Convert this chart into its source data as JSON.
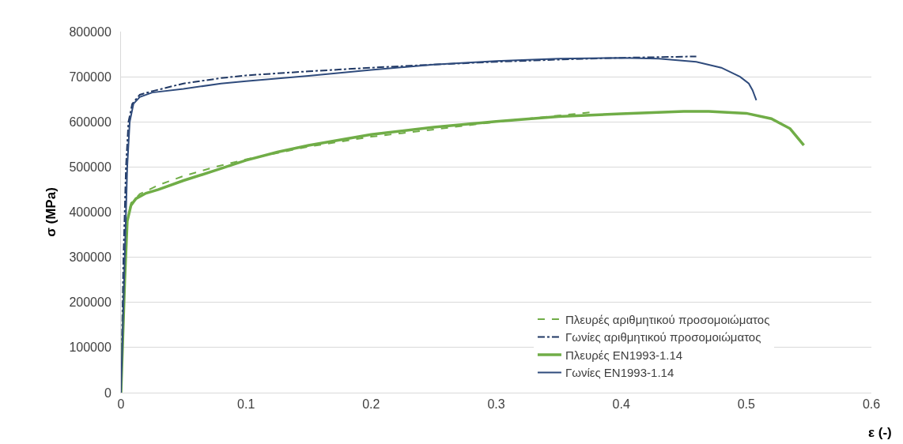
{
  "chart_data": {
    "type": "line",
    "xlabel": "ε (-)",
    "ylabel": "σ (MPa)",
    "xlim": [
      0,
      0.6
    ],
    "xticks": [
      0,
      0.1,
      0.2,
      0.3,
      0.4,
      0.5,
      0.6
    ],
    "ylim": [
      0,
      800000
    ],
    "yticks": [
      0,
      100000,
      200000,
      300000,
      400000,
      500000,
      600000,
      700000,
      800000
    ],
    "grid": "y",
    "legend": "bottom right",
    "marker": "none",
    "series": [
      {
        "name": "Πλευρές αριθμητικού προσομοιώματος",
        "color": "#70ad47",
        "line_style": "dashed",
        "x": [
          0,
          0.003,
          0.005,
          0.008,
          0.015,
          0.03,
          0.05,
          0.075,
          0.1,
          0.15,
          0.2,
          0.25,
          0.3,
          0.35,
          0.375
        ],
        "values": [
          0,
          250000,
          380000,
          420000,
          440000,
          460000,
          480000,
          500000,
          517000,
          545000,
          567000,
          583000,
          600000,
          614000,
          621000
        ]
      },
      {
        "name": "Γωνίες αριθμητικού προσομοιώματος",
        "color": "#203864",
        "line_style": "dashdot",
        "x": [
          0,
          0.002,
          0.004,
          0.006,
          0.009,
          0.015,
          0.025,
          0.05,
          0.08,
          0.1,
          0.15,
          0.2,
          0.25,
          0.3,
          0.35,
          0.4,
          0.46
        ],
        "values": [
          0,
          300000,
          500000,
          600000,
          640000,
          660000,
          668000,
          685000,
          697000,
          703000,
          712000,
          720000,
          727000,
          733000,
          738000,
          742000,
          745000
        ]
      },
      {
        "name": "Πλευρές EN1993-1.14",
        "color": "#70ad47",
        "line_style": "solid",
        "x": [
          0,
          0.003,
          0.005,
          0.008,
          0.012,
          0.02,
          0.03,
          0.05,
          0.075,
          0.1,
          0.125,
          0.15,
          0.2,
          0.25,
          0.3,
          0.35,
          0.4,
          0.45,
          0.47,
          0.5,
          0.52,
          0.535,
          0.546
        ],
        "values": [
          0,
          250000,
          380000,
          415000,
          430000,
          442000,
          450000,
          470000,
          492000,
          515000,
          533000,
          548000,
          572000,
          588000,
          601000,
          612000,
          618000,
          623000,
          623000,
          619000,
          607000,
          585000,
          548000
        ]
      },
      {
        "name": "Γωνίες EN1993-1.14",
        "color": "#2f4b7c",
        "line_style": "solid",
        "x": [
          0,
          0.003,
          0.005,
          0.007,
          0.01,
          0.015,
          0.025,
          0.05,
          0.08,
          0.1,
          0.15,
          0.2,
          0.25,
          0.3,
          0.35,
          0.4,
          0.43,
          0.46,
          0.48,
          0.495,
          0.502,
          0.505,
          0.508
        ],
        "values": [
          0,
          300000,
          500000,
          600000,
          640000,
          655000,
          665000,
          673000,
          685000,
          690000,
          702000,
          715000,
          727000,
          735000,
          740000,
          742000,
          740000,
          733000,
          720000,
          700000,
          685000,
          670000,
          648000
        ]
      }
    ]
  }
}
